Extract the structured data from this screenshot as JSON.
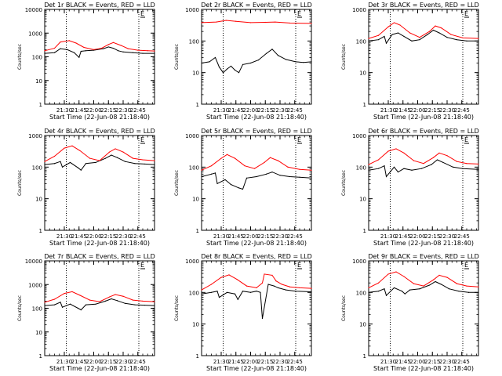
{
  "figure": {
    "colors": {
      "events": "#000000",
      "lld": "#ff0000",
      "axes": "#000000",
      "marker": "#000000"
    },
    "marker_label": "E"
  },
  "chart_data": [
    {
      "type": "line",
      "title": "Det 1r BLACK = Events, RED = LLD",
      "ylabel": "Counts/sec",
      "xlabel": "Start Time (22-Jun-08 21:18:40)",
      "y_scale": "log",
      "ylim": [
        1,
        10000
      ],
      "y_ticks": [
        "1",
        "10",
        "100",
        "1000",
        "10000"
      ],
      "x_ticks": [
        "21:30",
        "21:45",
        "22:00",
        "22:15",
        "22:30",
        "22:45"
      ],
      "x_tick_minutes": [
        690,
        705,
        720,
        735,
        750,
        765
      ],
      "xlim_minutes": [
        670,
        782
      ],
      "dotted_lines_minutes": [
        692,
        766
      ],
      "series": [
        {
          "x": [
            670,
            680,
            686,
            693,
            700,
            705,
            707,
            712,
            720,
            730,
            735,
            740,
            745,
            750,
            760,
            770,
            782
          ],
          "y": [
            140,
            150,
            220,
            200,
            150,
            95,
            170,
            180,
            190,
            220,
            260,
            230,
            180,
            160,
            150,
            140,
            140
          ]
        },
        {
          "x": [
            670,
            680,
            686,
            695,
            702,
            710,
            720,
            728,
            735,
            740,
            748,
            755,
            765,
            775,
            782
          ],
          "y": [
            180,
            230,
            420,
            480,
            380,
            250,
            200,
            230,
            330,
            400,
            300,
            220,
            190,
            180,
            175
          ]
        }
      ]
    },
    {
      "type": "line",
      "title": "Det 2r BLACK = Events, RED = LLD",
      "ylabel": "Counts/sec",
      "xlabel": "Start Time (22-Jun-08 21:18:40)",
      "y_scale": "log",
      "ylim": [
        1,
        1000
      ],
      "y_ticks": [
        "1",
        "10",
        "100",
        "1000"
      ],
      "x_ticks": [
        "21:30",
        "21:45",
        "22:00",
        "22:15",
        "22:30",
        "22:45"
      ],
      "x_tick_minutes": [
        690,
        705,
        720,
        735,
        750,
        765
      ],
      "xlim_minutes": [
        670,
        782
      ],
      "dotted_lines_minutes": [
        692,
        766
      ],
      "series": [
        {
          "x": [
            670,
            678,
            684,
            688,
            692,
            696,
            700,
            704,
            708,
            712,
            720,
            728,
            736,
            742,
            748,
            756,
            766,
            774,
            782
          ],
          "y": [
            20,
            22,
            30,
            15,
            10,
            13,
            16,
            12,
            10,
            18,
            20,
            25,
            40,
            55,
            35,
            26,
            22,
            21,
            22
          ]
        },
        {
          "x": [
            670,
            685,
            695,
            705,
            720,
            735,
            745,
            760,
            782
          ],
          "y": [
            380,
            400,
            450,
            420,
            380,
            390,
            400,
            370,
            360
          ]
        }
      ]
    },
    {
      "type": "line",
      "title": "Det 3r BLACK = Events, RED = LLD",
      "ylabel": "Counts/sec",
      "xlabel": "Start Time (22-Jun-08 21:18:40)",
      "y_scale": "log",
      "ylim": [
        1,
        1000
      ],
      "y_ticks": [
        "1",
        "10",
        "100",
        "1000"
      ],
      "x_ticks": [
        "21:30",
        "21:45",
        "22:00",
        "22:15",
        "22:30",
        "22:45"
      ],
      "x_tick_minutes": [
        690,
        705,
        720,
        735,
        750,
        765
      ],
      "xlim_minutes": [
        670,
        782
      ],
      "dotted_lines_minutes": [
        692,
        766
      ],
      "series": [
        {
          "x": [
            670,
            680,
            686,
            688,
            694,
            700,
            706,
            714,
            722,
            730,
            736,
            742,
            750,
            760,
            770,
            782
          ],
          "y": [
            100,
            110,
            140,
            85,
            160,
            180,
            140,
            100,
            110,
            160,
            220,
            180,
            130,
            110,
            100,
            100
          ]
        },
        {
          "x": [
            670,
            680,
            690,
            696,
            702,
            712,
            722,
            732,
            738,
            744,
            754,
            766,
            782
          ],
          "y": [
            120,
            150,
            280,
            380,
            320,
            180,
            130,
            200,
            300,
            260,
            160,
            125,
            120
          ]
        }
      ]
    },
    {
      "type": "line",
      "title": "Det 4r BLACK = Events, RED = LLD",
      "ylabel": "Counts/sec",
      "xlabel": "Start Time (22-Jun-08 21:18:40)",
      "y_scale": "log",
      "ylim": [
        1,
        1000
      ],
      "y_ticks": [
        "1",
        "10",
        "100",
        "1000"
      ],
      "x_ticks": [
        "21:30",
        "21:45",
        "22:00",
        "22:15",
        "22:30",
        "22:45"
      ],
      "x_tick_minutes": [
        690,
        705,
        720,
        735,
        750,
        765
      ],
      "xlim_minutes": [
        670,
        782
      ],
      "dotted_lines_minutes": [
        692,
        766
      ],
      "series": [
        {
          "x": [
            670,
            680,
            686,
            688,
            696,
            704,
            707,
            712,
            722,
            732,
            738,
            744,
            752,
            762,
            772,
            782
          ],
          "y": [
            120,
            130,
            150,
            100,
            140,
            95,
            80,
            130,
            140,
            190,
            240,
            200,
            150,
            130,
            125,
            120
          ]
        },
        {
          "x": [
            670,
            680,
            690,
            698,
            706,
            716,
            726,
            736,
            742,
            750,
            760,
            770,
            782
          ],
          "y": [
            150,
            220,
            400,
            470,
            330,
            190,
            160,
            300,
            380,
            300,
            190,
            170,
            160
          ]
        }
      ]
    },
    {
      "type": "line",
      "title": "Det 5r BLACK = Events, RED = LLD",
      "ylabel": "Counts/sec",
      "xlabel": "Start Time (22-Jun-08 21:18:40)",
      "y_scale": "log",
      "ylim": [
        1,
        1000
      ],
      "y_ticks": [
        "1",
        "10",
        "100",
        "1000"
      ],
      "x_ticks": [
        "21:30",
        "21:45",
        "22:00",
        "22:15",
        "22:30",
        "22:45"
      ],
      "x_tick_minutes": [
        690,
        705,
        720,
        735,
        750,
        765
      ],
      "xlim_minutes": [
        670,
        782
      ],
      "dotted_lines_minutes": [
        692,
        766
      ],
      "series": [
        {
          "x": [
            670,
            680,
            684,
            686,
            694,
            700,
            708,
            712,
            716,
            726,
            736,
            742,
            750,
            760,
            770,
            782
          ],
          "y": [
            50,
            60,
            65,
            30,
            40,
            28,
            22,
            20,
            45,
            50,
            60,
            70,
            55,
            50,
            48,
            45
          ]
        },
        {
          "x": [
            670,
            680,
            690,
            696,
            704,
            714,
            724,
            734,
            740,
            748,
            758,
            770,
            782
          ],
          "y": [
            80,
            110,
            190,
            250,
            190,
            110,
            90,
            140,
            200,
            160,
            100,
            85,
            80
          ]
        }
      ]
    },
    {
      "type": "line",
      "title": "Det 6r BLACK = Events, RED = LLD",
      "ylabel": "Counts/sec",
      "xlabel": "Start Time (22-Jun-08 21:18:40)",
      "y_scale": "log",
      "ylim": [
        1,
        1000
      ],
      "y_ticks": [
        "1",
        "10",
        "100",
        "1000"
      ],
      "x_ticks": [
        "21:30",
        "21:45",
        "22:00",
        "22:15",
        "22:30",
        "22:45"
      ],
      "x_tick_minutes": [
        690,
        705,
        720,
        735,
        750,
        765
      ],
      "xlim_minutes": [
        670,
        782
      ],
      "dotted_lines_minutes": [
        692,
        766
      ],
      "series": [
        {
          "x": [
            670,
            680,
            686,
            688,
            696,
            700,
            706,
            714,
            724,
            734,
            740,
            746,
            756,
            766,
            782
          ],
          "y": [
            80,
            90,
            110,
            50,
            100,
            70,
            90,
            80,
            90,
            120,
            170,
            140,
            100,
            90,
            85
          ]
        },
        {
          "x": [
            670,
            680,
            690,
            698,
            706,
            716,
            726,
            736,
            742,
            750,
            760,
            770,
            782
          ],
          "y": [
            120,
            170,
            320,
            380,
            280,
            160,
            130,
            200,
            280,
            230,
            150,
            130,
            125
          ]
        }
      ]
    },
    {
      "type": "line",
      "title": "Det 7r BLACK = Events, RED = LLD",
      "ylabel": "Counts/sec",
      "xlabel": "Start Time (22-Jun-08 21:18:40)",
      "y_scale": "log",
      "ylim": [
        1,
        10000
      ],
      "y_ticks": [
        "1",
        "10",
        "100",
        "1000",
        "10000"
      ],
      "x_ticks": [
        "21:30",
        "21:45",
        "22:00",
        "22:15",
        "22:30",
        "22:45"
      ],
      "x_tick_minutes": [
        690,
        705,
        720,
        735,
        750,
        765
      ],
      "xlim_minutes": [
        670,
        782
      ],
      "dotted_lines_minutes": [
        692,
        766
      ],
      "series": [
        {
          "x": [
            670,
            680,
            686,
            688,
            696,
            704,
            707,
            712,
            722,
            732,
            738,
            744,
            752,
            762,
            772,
            782
          ],
          "y": [
            130,
            140,
            180,
            110,
            150,
            100,
            85,
            140,
            150,
            200,
            250,
            210,
            160,
            140,
            135,
            130
          ]
        },
        {
          "x": [
            670,
            680,
            690,
            698,
            706,
            716,
            726,
            736,
            742,
            750,
            760,
            770,
            782
          ],
          "y": [
            180,
            240,
            420,
            500,
            350,
            220,
            190,
            300,
            380,
            320,
            220,
            200,
            190
          ]
        }
      ]
    },
    {
      "type": "line",
      "title": "Det 8r BLACK = Events, RED = LLD",
      "ylabel": "Counts/sec",
      "xlabel": "Start Time (22-Jun-08 21:18:40)",
      "y_scale": "log",
      "ylim": [
        1,
        1000
      ],
      "y_ticks": [
        "1",
        "10",
        "100",
        "1000"
      ],
      "x_ticks": [
        "21:30",
        "21:45",
        "22:00",
        "22:15",
        "22:30",
        "22:45"
      ],
      "x_tick_minutes": [
        690,
        705,
        720,
        735,
        750,
        765
      ],
      "xlim_minutes": [
        670,
        782
      ],
      "dotted_lines_minutes": [
        692,
        766
      ],
      "series": [
        {
          "x": [
            670,
            680,
            686,
            688,
            696,
            704,
            707,
            712,
            720,
            726,
            730,
            732,
            738,
            744,
            748,
            756,
            766,
            782
          ],
          "y": [
            90,
            100,
            110,
            70,
            100,
            90,
            60,
            110,
            100,
            110,
            100,
            15,
            180,
            160,
            140,
            120,
            110,
            105
          ]
        },
        {
          "x": [
            670,
            680,
            690,
            698,
            706,
            716,
            726,
            732,
            734,
            742,
            746,
            752,
            760,
            770,
            782
          ],
          "y": [
            120,
            180,
            300,
            360,
            260,
            160,
            140,
            200,
            380,
            350,
            230,
            180,
            150,
            140,
            135
          ]
        }
      ]
    },
    {
      "type": "line",
      "title": "Det 9r BLACK = Events, RED = LLD",
      "ylabel": "Counts/sec",
      "xlabel": "Start Time (22-Jun-08 21:18:40)",
      "y_scale": "log",
      "ylim": [
        1,
        1000
      ],
      "y_ticks": [
        "1",
        "10",
        "100",
        "1000"
      ],
      "x_ticks": [
        "21:30",
        "21:45",
        "22:00",
        "22:15",
        "22:30",
        "22:45"
      ],
      "x_tick_minutes": [
        690,
        705,
        720,
        735,
        750,
        765
      ],
      "xlim_minutes": [
        670,
        782
      ],
      "dotted_lines_minutes": [
        692,
        766
      ],
      "series": [
        {
          "x": [
            670,
            680,
            686,
            688,
            696,
            704,
            707,
            712,
            722,
            732,
            738,
            744,
            752,
            762,
            772,
            782
          ],
          "y": [
            100,
            110,
            130,
            80,
            140,
            110,
            90,
            120,
            130,
            170,
            220,
            180,
            130,
            110,
            100,
            100
          ]
        },
        {
          "x": [
            670,
            680,
            690,
            698,
            706,
            716,
            726,
            736,
            742,
            750,
            760,
            770,
            782
          ],
          "y": [
            140,
            200,
            380,
            450,
            320,
            190,
            160,
            250,
            350,
            300,
            190,
            160,
            150
          ]
        }
      ]
    }
  ]
}
